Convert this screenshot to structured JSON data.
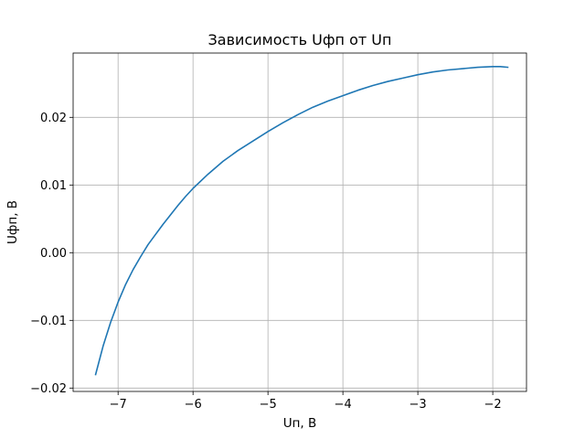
{
  "chart_data": {
    "type": "line",
    "title": "Зависимость Uфп от Uп",
    "xlabel": "Uп, В",
    "ylabel": "Uфп, В",
    "xlim": [
      -7.6,
      -1.55
    ],
    "ylim": [
      -0.0205,
      0.0295
    ],
    "xticks": [
      -7,
      -6,
      -5,
      -4,
      -3,
      -2
    ],
    "xtick_labels": [
      "−7",
      "−6",
      "−5",
      "−4",
      "−3",
      "−2"
    ],
    "yticks": [
      -0.02,
      -0.01,
      0.0,
      0.01,
      0.02
    ],
    "ytick_labels": [
      "−0.02",
      "−0.01",
      "0.00",
      "0.01",
      "0.02"
    ],
    "grid": true,
    "series": [
      {
        "color": "#1f77b4",
        "x": [
          -7.3,
          -7.2,
          -7.1,
          -7.0,
          -6.9,
          -6.8,
          -6.7,
          -6.6,
          -6.5,
          -6.4,
          -6.3,
          -6.2,
          -6.1,
          -6.0,
          -5.8,
          -5.6,
          -5.4,
          -5.2,
          -5.0,
          -4.8,
          -4.6,
          -4.4,
          -4.2,
          -4.0,
          -3.8,
          -3.6,
          -3.4,
          -3.2,
          -3.0,
          -2.8,
          -2.6,
          -2.4,
          -2.2,
          -2.0,
          -1.9,
          -1.8
        ],
        "y": [
          -0.018,
          -0.0138,
          -0.0103,
          -0.0073,
          -0.0047,
          -0.0025,
          -0.0006,
          0.0012,
          0.0027,
          0.0042,
          0.0056,
          0.007,
          0.0083,
          0.0095,
          0.0116,
          0.0135,
          0.0151,
          0.0165,
          0.0179,
          0.0192,
          0.0204,
          0.0215,
          0.0224,
          0.0232,
          0.024,
          0.0247,
          0.0253,
          0.0258,
          0.0263,
          0.0267,
          0.027,
          0.0272,
          0.0274,
          0.0275,
          0.0275,
          0.0274
        ]
      }
    ]
  }
}
